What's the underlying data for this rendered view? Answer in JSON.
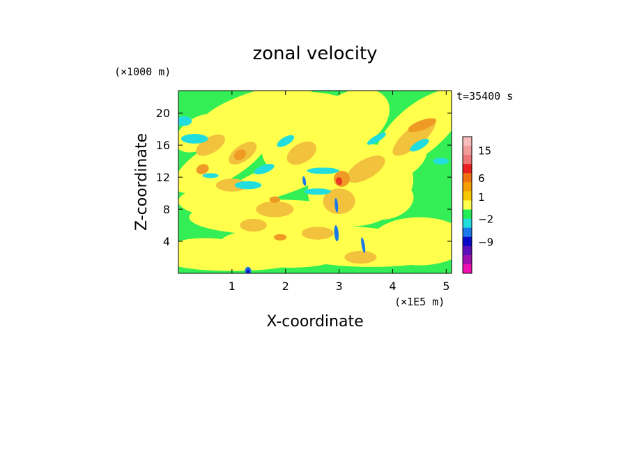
{
  "chart_data": {
    "type": "heatmap",
    "title": "zonal velocity",
    "xlabel": "X-coordinate",
    "ylabel": "Z-coordinate",
    "x_unit": "(×1E5 m)",
    "y_unit": "(×1000 m)",
    "time_label": "t=35400 s",
    "xlim": [
      0,
      5.1
    ],
    "ylim": [
      0,
      22.8
    ],
    "x_ticks": [
      "1",
      "2",
      "3",
      "4",
      "5"
    ],
    "y_ticks": [
      "4",
      "8",
      "12",
      "16",
      "20"
    ],
    "colorbar_labels": [
      "15",
      "6",
      "1",
      "−2",
      "−9"
    ],
    "colorbar_levels": [
      {
        "color": "#f8bcbc"
      },
      {
        "color": "#f29b9b"
      },
      {
        "color": "#ee7676"
      },
      {
        "color": "#e82020"
      },
      {
        "color": "#f07010"
      },
      {
        "color": "#f5a000"
      },
      {
        "color": "#f7c800"
      },
      {
        "color": "#ffff4c"
      },
      {
        "color": "#22ee55"
      },
      {
        "color": "#22dddd"
      },
      {
        "color": "#1a78e8"
      },
      {
        "color": "#0a0ac8"
      },
      {
        "color": "#5a10b8"
      },
      {
        "color": "#a010b0"
      },
      {
        "color": "#ee10b0"
      }
    ],
    "field_colors": {
      "green": "#33ee55",
      "yellow": "#ffff4c",
      "light_orange": "#f2c23c",
      "orange": "#ef9a25",
      "red": "#e83a20",
      "cyan": "#22dddd",
      "blue": "#1a78e8",
      "navy": "#0a0ac8"
    }
  }
}
